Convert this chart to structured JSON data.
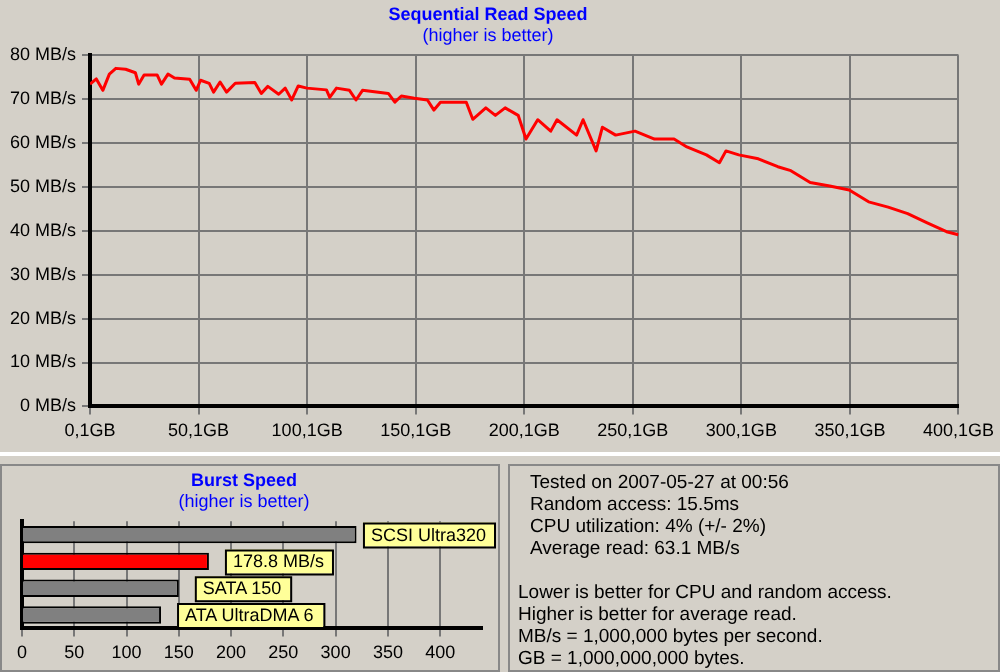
{
  "chart_data": [
    {
      "type": "line",
      "title": "Sequential Read Speed",
      "subtitle": "(higher is better)",
      "color": "#ff0000",
      "grid": true,
      "legend": false,
      "marker": "none",
      "xlim": [
        0.1,
        400.1
      ],
      "xticks": [
        {
          "value": 0.1,
          "label": "0,1GB"
        },
        {
          "value": 50.1,
          "label": "50,1GB"
        },
        {
          "value": 100.1,
          "label": "100,1GB"
        },
        {
          "value": 150.1,
          "label": "150,1GB"
        },
        {
          "value": 200.1,
          "label": "200,1GB"
        },
        {
          "value": 250.1,
          "label": "250,1GB"
        },
        {
          "value": 300.1,
          "label": "300,1GB"
        },
        {
          "value": 350.1,
          "label": "350,1GB"
        },
        {
          "value": 400.1,
          "label": "400,1GB"
        }
      ],
      "ylim": [
        0,
        80
      ],
      "yticks": [
        {
          "value": 0,
          "label": "0 MB/s"
        },
        {
          "value": 10,
          "label": "10 MB/s"
        },
        {
          "value": 20,
          "label": "20 MB/s"
        },
        {
          "value": 30,
          "label": "30 MB/s"
        },
        {
          "value": 40,
          "label": "40 MB/s"
        },
        {
          "value": 50,
          "label": "50 MB/s"
        },
        {
          "value": 60,
          "label": "60 MB/s"
        },
        {
          "value": 70,
          "label": "70 MB/s"
        },
        {
          "value": 80,
          "label": "80 MB/s"
        }
      ],
      "x": [
        0.1,
        3,
        6,
        9,
        12,
        16.5,
        21,
        22.5,
        25,
        31,
        33,
        36,
        39,
        46,
        49,
        51,
        55,
        57,
        60,
        63,
        67,
        76,
        79,
        82,
        87,
        90,
        93,
        96,
        100,
        109,
        110.5,
        113.6,
        119.6,
        122.6,
        125.6,
        137.5,
        140.5,
        143.5,
        149.5,
        155.5,
        158.5,
        161.5,
        173.4,
        176.4,
        182.4,
        186.8,
        191.3,
        197.3,
        200.9,
        206.3,
        212.3,
        215.2,
        224.2,
        227.2,
        233.2,
        236.1,
        242.2,
        251.1,
        260.1,
        269.1,
        275,
        284,
        290,
        293,
        298.9,
        307.9,
        316.9,
        322.9,
        331.8,
        340.8,
        349.8,
        358.7,
        367.7,
        376.7,
        385.7,
        394.6,
        400.1
      ],
      "values": [
        73.4,
        74.6,
        72,
        75.7,
        77,
        76.8,
        76,
        73.4,
        75.5,
        75.5,
        73.4,
        75.7,
        74.8,
        74.5,
        72,
        74.3,
        73.6,
        71.6,
        73.9,
        71.6,
        73.6,
        73.8,
        71.3,
        72.9,
        71.1,
        72.5,
        69.8,
        73,
        72.5,
        72.1,
        70.4,
        72.5,
        72,
        69.8,
        72,
        71.3,
        69.3,
        70.7,
        70.2,
        69.8,
        67.5,
        69.3,
        69.3,
        65.4,
        68,
        66.3,
        68,
        66.3,
        60.9,
        65.3,
        62.7,
        65.3,
        61.8,
        65.3,
        58.2,
        63.6,
        61.8,
        62.7,
        60.9,
        60.9,
        59.1,
        57.3,
        55.5,
        58.2,
        57.3,
        56.4,
        54.6,
        53.7,
        51,
        50.2,
        49.3,
        46.6,
        45.4,
        43.9,
        41.8,
        39.8,
        39.1
      ]
    },
    {
      "type": "bar",
      "orientation": "horizontal",
      "title": "Burst Speed",
      "subtitle": "(higher is better)",
      "grid": "x",
      "legend": false,
      "categories": [
        "SCSI Ultra320",
        null,
        "SATA 150",
        "ATA UltraDMA 6"
      ],
      "values": [
        320,
        178.8,
        150,
        133
      ],
      "colors": [
        "#808080",
        "#ff0000",
        "#808080",
        "#808080"
      ],
      "value_labels": [
        null,
        "178.8 MB/s",
        null,
        null
      ],
      "xlim": [
        0,
        440
      ],
      "xticks": [
        0,
        50,
        100,
        150,
        200,
        250,
        300,
        350,
        400
      ]
    },
    {
      "type": "other",
      "annotations": [
        "Tested on 2007-05-27 at 00:56",
        "Random access: 15.5ms",
        "CPU utilization: 4% (+/- 2%)",
        "Average read: 63.1 MB/s",
        "Lower is better for CPU and random access.",
        "Higher is better for average read.",
        "MB/s = 1,000,000 bytes per second.",
        "GB = 1,000,000,000 bytes."
      ]
    }
  ]
}
